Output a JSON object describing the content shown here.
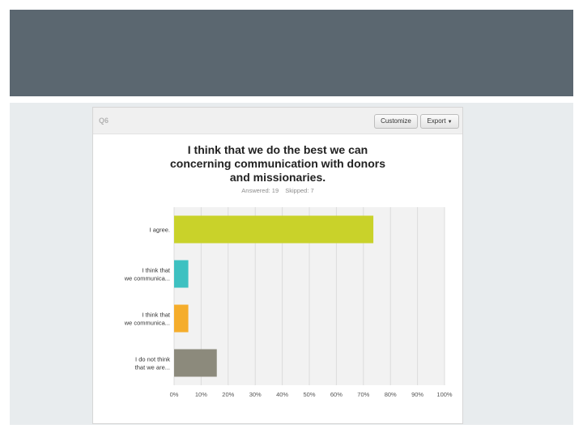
{
  "question": {
    "label": "Q6",
    "customize_label": "Customize",
    "export_label": "Export",
    "answered_text": "Answered: 19",
    "skipped_text": "Skipped: 7"
  },
  "colors": {
    "header": "#5b6770",
    "body": "#e8ecee",
    "plot_bg": "#f2f2f2",
    "grid": "#dcdcdc"
  },
  "chart_data": {
    "type": "bar",
    "orientation": "horizontal",
    "title": "I think that we do the best we can concerning communication with donors and missionaries.",
    "title_lines": [
      "I think that we do the best we can",
      "concerning communication with donors",
      "and missionaries."
    ],
    "categories": [
      "I agree.",
      "I think that we communica...",
      "I think that we communica...",
      "I do not think that we are..."
    ],
    "category_lines": [
      [
        "I agree."
      ],
      [
        "I think that",
        "we communica..."
      ],
      [
        "I think that",
        "we communica..."
      ],
      [
        "I do not think",
        "that we are..."
      ]
    ],
    "values": [
      73.68,
      5.26,
      5.26,
      15.79
    ],
    "bar_colors": [
      "#c9d22a",
      "#3ec1c1",
      "#f5ad2c",
      "#8c8a7c"
    ],
    "xlim": [
      0,
      100
    ],
    "x_ticks": [
      "0%",
      "10%",
      "20%",
      "30%",
      "40%",
      "50%",
      "60%",
      "70%",
      "80%",
      "90%",
      "100%"
    ],
    "grid": true
  }
}
